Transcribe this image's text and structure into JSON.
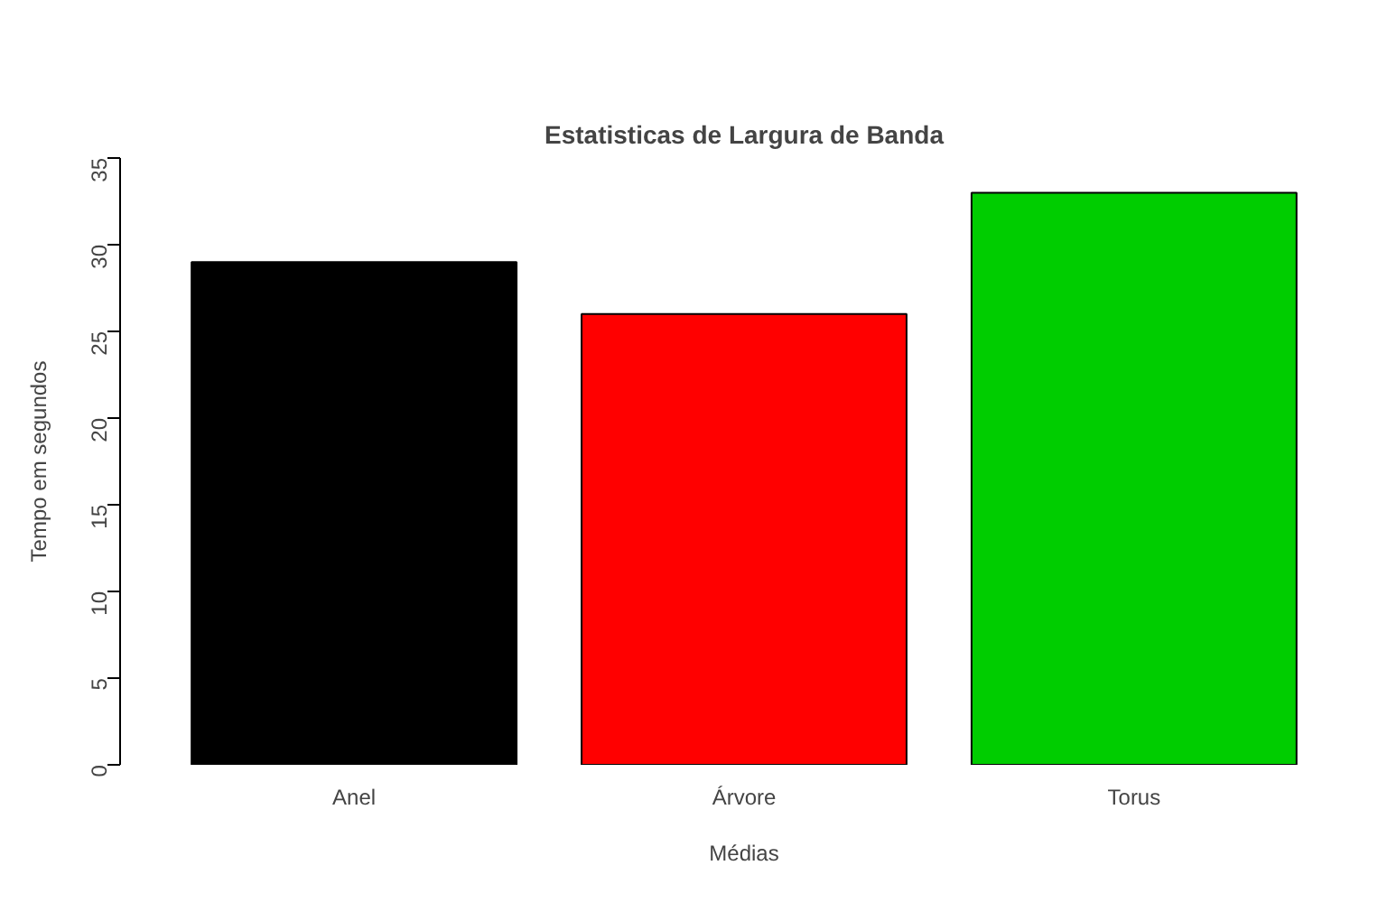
{
  "chart_data": {
    "type": "bar",
    "title": "Estatisticas de Largura de Banda",
    "xlabel": "Médias",
    "ylabel": "Tempo em segundos",
    "categories": [
      "Anel",
      "Árvore",
      "Torus"
    ],
    "values": [
      29,
      26,
      33
    ],
    "colors": [
      "#000000",
      "#ff0000",
      "#00cd00"
    ],
    "ylim": [
      0,
      35
    ],
    "yticks": [
      0,
      5,
      10,
      15,
      20,
      25,
      30,
      35
    ],
    "grid": false
  }
}
